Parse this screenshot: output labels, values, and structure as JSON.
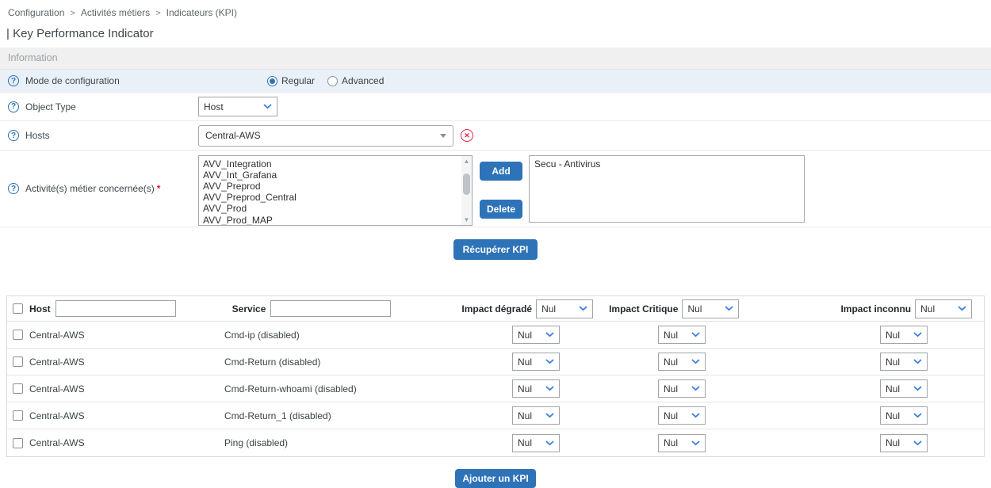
{
  "breadcrumb": {
    "separator": ">",
    "items": [
      "Configuration",
      "Activités métiers",
      "Indicateurs (KPI)"
    ]
  },
  "page_title": "| Key Performance Indicator",
  "section": {
    "title": "Information"
  },
  "form": {
    "mode": {
      "label": "Mode de configuration",
      "options": [
        {
          "label": "Regular",
          "selected": true
        },
        {
          "label": "Advanced",
          "selected": false
        }
      ]
    },
    "object_type": {
      "label": "Object Type",
      "value": "Host"
    },
    "hosts": {
      "label": "Hosts",
      "value": "Central-AWS"
    },
    "activities": {
      "label": "Activité(s) métier concernée(s)",
      "required_mark": "*",
      "available": [
        "AVV_Integration",
        "AVV_Int_Grafana",
        "AVV_Preprod",
        "AVV_Preprod_Central",
        "AVV_Prod",
        "AVV_Prod_MAP"
      ],
      "selected": [
        "Secu - Antivirus"
      ],
      "add_label": "Add",
      "delete_label": "Delete"
    }
  },
  "buttons": {
    "retrieve": "Récupérer KPI",
    "add_kpi": "Ajouter un KPI"
  },
  "kpi_table": {
    "header": {
      "host": "Host",
      "service": "Service",
      "impact_degraded": "Impact dégradé",
      "impact_critical": "Impact Critique",
      "impact_unknown": "Impact inconnu",
      "impact_degraded_value": "Nul",
      "impact_critical_value": "Nul",
      "impact_unknown_value": "Nul",
      "host_filter": "",
      "service_filter": ""
    },
    "rows": [
      {
        "host": "Central-AWS",
        "service": "Cmd-ip (disabled)",
        "impact_degraded": "Nul",
        "impact_critical": "Nul",
        "impact_unknown": "Nul"
      },
      {
        "host": "Central-AWS",
        "service": "Cmd-Return (disabled)",
        "impact_degraded": "Nul",
        "impact_critical": "Nul",
        "impact_unknown": "Nul"
      },
      {
        "host": "Central-AWS",
        "service": "Cmd-Return-whoami (disabled)",
        "impact_degraded": "Nul",
        "impact_critical": "Nul",
        "impact_unknown": "Nul"
      },
      {
        "host": "Central-AWS",
        "service": "Cmd-Return_1 (disabled)",
        "impact_degraded": "Nul",
        "impact_critical": "Nul",
        "impact_unknown": "Nul"
      },
      {
        "host": "Central-AWS",
        "service": "Ping (disabled)",
        "impact_degraded": "Nul",
        "impact_critical": "Nul",
        "impact_unknown": "Nul"
      }
    ]
  },
  "icons": {
    "help": "?",
    "clear": "✕",
    "scroll_up": "▲",
    "scroll_down": "▼"
  },
  "colors": {
    "accent": "#2e73b8",
    "row_highlight": "#e9f0f8",
    "chevron": "#3b7ddd",
    "danger": "#e0234e"
  }
}
